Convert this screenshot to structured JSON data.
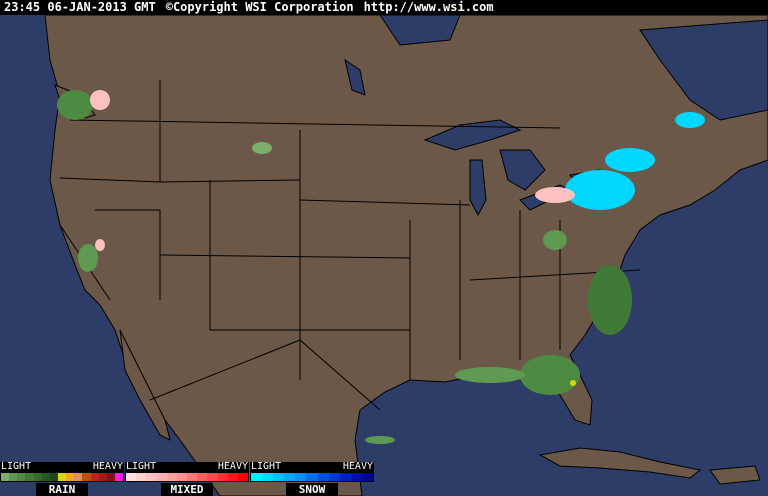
{
  "header": {
    "timestamp": "23:45 06-JAN-2013 GMT",
    "copyright": "©Copyright WSI Corporation",
    "url": "http://www.wsi.com"
  },
  "colors": {
    "ocean": "#2e3d68",
    "land": "#6c5848",
    "borders": "#000000"
  },
  "legend": [
    {
      "name": "RAIN",
      "light": "LIGHT",
      "heavy": "HEAVY",
      "colors": [
        "#7ab06a",
        "#5e9a52",
        "#4d8a42",
        "#3f7a36",
        "#336a2c",
        "#275a22",
        "#1e4a1a",
        "#d8d810",
        "#f0a818",
        "#e09060",
        "#c05010",
        "#c02020",
        "#a01818",
        "#801020",
        "#f020e0"
      ]
    },
    {
      "name": "MIXED",
      "light": "LIGHT",
      "heavy": "HEAVY",
      "colors": [
        "#ffe0e0",
        "#ffd0d0",
        "#ffc0c0",
        "#ffb0b0",
        "#ffa0a0",
        "#ff9090",
        "#ff7878",
        "#ff6060",
        "#ff4848",
        "#ff3030",
        "#ff1818",
        "#ff0000"
      ]
    },
    {
      "name": "SNOW",
      "light": "LIGHT",
      "heavy": "HEAVY",
      "colors": [
        "#00f0ff",
        "#00d8ff",
        "#00c0ff",
        "#00a8ff",
        "#0090ff",
        "#0070f0",
        "#0050e0",
        "#0038d0",
        "#0020c0",
        "#0010a8",
        "#000890"
      ]
    }
  ]
}
